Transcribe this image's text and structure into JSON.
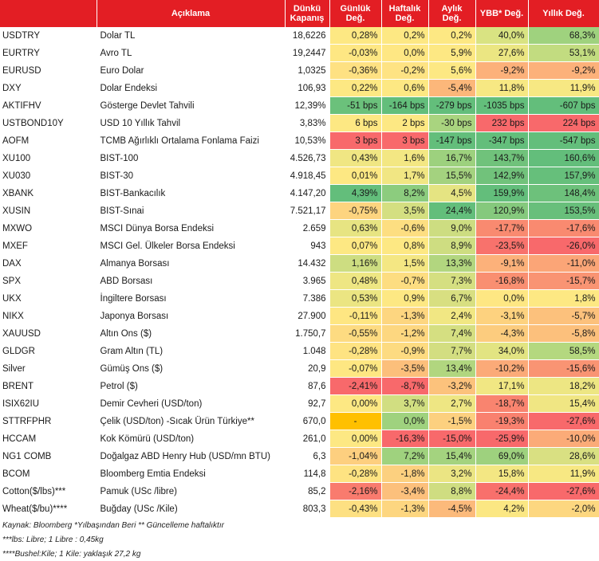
{
  "headers": {
    "code": "",
    "description": "Açıklama",
    "close": "Dünkü Kapanış",
    "daily": "Günlük Değ.",
    "weekly": "Haftalık Değ.",
    "monthly": "Aylık Değ.",
    "ytd": "YBB* Değ.",
    "yearly": "Yıllık Değ."
  },
  "colors": {
    "header_bg": "#e31e24",
    "header_text": "#ffffff"
  },
  "rows": [
    {
      "code": "USDTRY",
      "desc": "Dolar TL",
      "close": "18,6226",
      "cells": [
        {
          "t": "0,28%",
          "c": "#fde883"
        },
        {
          "t": "0,2%",
          "c": "#fde883"
        },
        {
          "t": "0,2%",
          "c": "#fde883"
        },
        {
          "t": "40,0%",
          "c": "#d9e382"
        },
        {
          "t": "68,3%",
          "c": "#9fd27e"
        }
      ]
    },
    {
      "code": "EURTRY",
      "desc": "Avro TL",
      "close": "19,2447",
      "cells": [
        {
          "t": "-0,03%",
          "c": "#fee783"
        },
        {
          "t": "0,0%",
          "c": "#fee783"
        },
        {
          "t": "5,9%",
          "c": "#fde883"
        },
        {
          "t": "27,6%",
          "c": "#ebe682"
        },
        {
          "t": "53,1%",
          "c": "#c2dc80"
        }
      ]
    },
    {
      "code": "EURUSD",
      "desc": "Euro Dolar",
      "close": "1,0325",
      "cells": [
        {
          "t": "-0,36%",
          "c": "#fee182"
        },
        {
          "t": "-0,2%",
          "c": "#fee383"
        },
        {
          "t": "5,6%",
          "c": "#fde883"
        },
        {
          "t": "-9,2%",
          "c": "#fcb17a"
        },
        {
          "t": "-9,2%",
          "c": "#fcb17a"
        }
      ]
    },
    {
      "code": "DXY",
      "desc": "Dolar Endeksi",
      "close": "106,93",
      "cells": [
        {
          "t": "0,22%",
          "c": "#fde883"
        },
        {
          "t": "0,6%",
          "c": "#fde883"
        },
        {
          "t": "-5,4%",
          "c": "#fcb77a"
        },
        {
          "t": "11,8%",
          "c": "#f7e883"
        },
        {
          "t": "11,9%",
          "c": "#f7e883"
        }
      ]
    },
    {
      "code": "AKTIFHV",
      "desc": "Gösterge Devlet Tahvili",
      "close": "12,39%",
      "cells": [
        {
          "t": "-51 bps",
          "c": "#6bc17b"
        },
        {
          "t": "-164 bps",
          "c": "#63be7b"
        },
        {
          "t": "-279 bps",
          "c": "#63be7b"
        },
        {
          "t": "-1035 bps",
          "c": "#63be7b"
        },
        {
          "t": "-607 bps",
          "c": "#63be7b"
        }
      ]
    },
    {
      "code": "USTBOND10Y",
      "desc": "USD 10 Yıllık Tahvil",
      "close": "3,83%",
      "cells": [
        {
          "t": "6 bps",
          "c": "#fde883"
        },
        {
          "t": "2 bps",
          "c": "#fde883"
        },
        {
          "t": "-30 bps",
          "c": "#a9d47f"
        },
        {
          "t": "232 bps",
          "c": "#f8696b"
        },
        {
          "t": "224 bps",
          "c": "#f8696b"
        }
      ]
    },
    {
      "code": "AOFM",
      "desc": "TCMB Ağırlıklı Ortalama Fonlama Faizi",
      "close": "10,53%",
      "cells": [
        {
          "t": "3 bps",
          "c": "#f8696b"
        },
        {
          "t": "3 bps",
          "c": "#f8696b"
        },
        {
          "t": "-147 bps",
          "c": "#63be7b"
        },
        {
          "t": "-347 bps",
          "c": "#63be7b"
        },
        {
          "t": "-547 bps",
          "c": "#63be7b"
        }
      ]
    },
    {
      "code": "XU100",
      "desc": "BIST-100",
      "close": "4.526,73",
      "cells": [
        {
          "t": "0,43%",
          "c": "#f0e683"
        },
        {
          "t": "1,6%",
          "c": "#f3e783"
        },
        {
          "t": "16,7%",
          "c": "#9dd17e"
        },
        {
          "t": "143,7%",
          "c": "#70c27b"
        },
        {
          "t": "160,6%",
          "c": "#63be7b"
        }
      ]
    },
    {
      "code": "XU030",
      "desc": "BIST-30",
      "close": "4.918,45",
      "cells": [
        {
          "t": "0,01%",
          "c": "#fde883"
        },
        {
          "t": "1,7%",
          "c": "#f1e683"
        },
        {
          "t": "15,5%",
          "c": "#a4d27f"
        },
        {
          "t": "142,9%",
          "c": "#71c27b"
        },
        {
          "t": "157,9%",
          "c": "#66bf7b"
        }
      ]
    },
    {
      "code": "XBANK",
      "desc": "BIST-Bankacılık",
      "close": "4.147,20",
      "cells": [
        {
          "t": "4,39%",
          "c": "#63be7b"
        },
        {
          "t": "8,2%",
          "c": "#8ccc7e"
        },
        {
          "t": "4,5%",
          "c": "#e5e482"
        },
        {
          "t": "159,9%",
          "c": "#63be7b"
        },
        {
          "t": "148,4%",
          "c": "#6dc17b"
        }
      ]
    },
    {
      "code": "XUSIN",
      "desc": "BIST-Sınai",
      "close": "7.521,17",
      "cells": [
        {
          "t": "-0,75%",
          "c": "#fdd47f"
        },
        {
          "t": "3,5%",
          "c": "#d4df81"
        },
        {
          "t": "24,4%",
          "c": "#63be7b"
        },
        {
          "t": "120,9%",
          "c": "#85c97d"
        },
        {
          "t": "153,5%",
          "c": "#68bf7b"
        }
      ]
    },
    {
      "code": "MXWO",
      "desc": "MSCI Dünya Borsa Endeksi",
      "close": "2.659",
      "cells": [
        {
          "t": "0,63%",
          "c": "#e7e482"
        },
        {
          "t": "-0,6%",
          "c": "#fdde81"
        },
        {
          "t": "9,0%",
          "c": "#cddd81"
        },
        {
          "t": "-17,7%",
          "c": "#f98a70"
        },
        {
          "t": "-17,6%",
          "c": "#f98a70"
        }
      ]
    },
    {
      "code": "MXEF",
      "desc": "MSCI Gel. Ülkeler Borsa Endeksi",
      "close": "943",
      "cells": [
        {
          "t": "0,07%",
          "c": "#fde883"
        },
        {
          "t": "0,8%",
          "c": "#fde883"
        },
        {
          "t": "8,9%",
          "c": "#cedd81"
        },
        {
          "t": "-23,5%",
          "c": "#f8726c"
        },
        {
          "t": "-26,0%",
          "c": "#f8696b"
        }
      ]
    },
    {
      "code": "DAX",
      "desc": "Almanya Borsası",
      "close": "14.432",
      "cells": [
        {
          "t": "1,16%",
          "c": "#cddd81"
        },
        {
          "t": "1,5%",
          "c": "#f4e783"
        },
        {
          "t": "13,3%",
          "c": "#b2d67f"
        },
        {
          "t": "-9,1%",
          "c": "#fcb17a"
        },
        {
          "t": "-11,0%",
          "c": "#fba577"
        }
      ]
    },
    {
      "code": "SPX",
      "desc": "ABD Borsası",
      "close": "3.965",
      "cells": [
        {
          "t": "0,48%",
          "c": "#eee683"
        },
        {
          "t": "-0,7%",
          "c": "#fddd81"
        },
        {
          "t": "7,3%",
          "c": "#d5df81"
        },
        {
          "t": "-16,8%",
          "c": "#f98f71"
        },
        {
          "t": "-15,7%",
          "c": "#f99473"
        }
      ]
    },
    {
      "code": "UKX",
      "desc": "İngiltere Borsası",
      "close": "7.386",
      "cells": [
        {
          "t": "0,53%",
          "c": "#ebe582"
        },
        {
          "t": "0,9%",
          "c": "#fde883"
        },
        {
          "t": "6,7%",
          "c": "#d8df81"
        },
        {
          "t": "0,0%",
          "c": "#fee783"
        },
        {
          "t": "1,8%",
          "c": "#fde883"
        }
      ]
    },
    {
      "code": "NIKX",
      "desc": "Japonya Borsası",
      "close": "27.900",
      "cells": [
        {
          "t": "-0,11%",
          "c": "#fee682"
        },
        {
          "t": "-1,3%",
          "c": "#fdd680"
        },
        {
          "t": "2,4%",
          "c": "#f1e783"
        },
        {
          "t": "-3,1%",
          "c": "#fdd27f"
        },
        {
          "t": "-5,7%",
          "c": "#fcc17c"
        }
      ]
    },
    {
      "code": "XAUUSD",
      "desc": "Altın Ons ($)",
      "close": "1.750,7",
      "cells": [
        {
          "t": "-0,55%",
          "c": "#fddb81"
        },
        {
          "t": "-1,2%",
          "c": "#fdd780"
        },
        {
          "t": "7,4%",
          "c": "#d5df81"
        },
        {
          "t": "-4,3%",
          "c": "#fccc7e"
        },
        {
          "t": "-5,8%",
          "c": "#fcc07c"
        }
      ]
    },
    {
      "code": "GLDGR",
      "desc": "Gram Altın (TL)",
      "close": "1.048",
      "cells": [
        {
          "t": "-0,28%",
          "c": "#fee382"
        },
        {
          "t": "-0,9%",
          "c": "#fddb81"
        },
        {
          "t": "7,7%",
          "c": "#d3de81"
        },
        {
          "t": "34,0%",
          "c": "#e2e482"
        },
        {
          "t": "58,5%",
          "c": "#b4d87f"
        }
      ]
    },
    {
      "code": "Silver",
      "desc": "Gümüş Ons ($)",
      "close": "20,9",
      "cells": [
        {
          "t": "-0,07%",
          "c": "#fee782"
        },
        {
          "t": "-3,5%",
          "c": "#fcbf7b"
        },
        {
          "t": "13,4%",
          "c": "#b1d67f"
        },
        {
          "t": "-10,2%",
          "c": "#fbaa78"
        },
        {
          "t": "-15,6%",
          "c": "#f99473"
        }
      ]
    },
    {
      "code": "BRENT",
      "desc": "Petrol ($)",
      "close": "87,6",
      "cells": [
        {
          "t": "-2,41%",
          "c": "#f8696b"
        },
        {
          "t": "-8,7%",
          "c": "#f8696b"
        },
        {
          "t": "-3,2%",
          "c": "#fcc27c"
        },
        {
          "t": "17,1%",
          "c": "#f1e783"
        },
        {
          "t": "18,2%",
          "c": "#ede683"
        }
      ]
    },
    {
      "code": "ISIX62IU",
      "desc": "Demir Cevheri (USD/ton)",
      "close": "92,7",
      "cells": [
        {
          "t": "0,00%",
          "c": "#fde883"
        },
        {
          "t": "3,7%",
          "c": "#d1de81"
        },
        {
          "t": "2,7%",
          "c": "#eee683"
        },
        {
          "t": "-18,7%",
          "c": "#f9846f"
        },
        {
          "t": "15,4%",
          "c": "#f0e683"
        }
      ]
    },
    {
      "code": "STTRFPHR",
      "desc": "Çelik (USD/ton) -Sıcak Ürün Türkiye**",
      "close": "670,0",
      "cells": [
        {
          "t": "-",
          "c": "#ffc000",
          "center": true
        },
        {
          "t": "0,0%",
          "c": "#9fd27e"
        },
        {
          "t": "-1,5%",
          "c": "#fcd07f"
        },
        {
          "t": "-19,3%",
          "c": "#f9816f"
        },
        {
          "t": "-27,6%",
          "c": "#f8696b"
        }
      ]
    },
    {
      "code": "HCCAM",
      "desc": "Kok Kömürü (USD/ton)",
      "close": "261,0",
      "cells": [
        {
          "t": "0,00%",
          "c": "#fde883"
        },
        {
          "t": "-16,3%",
          "c": "#f8696b"
        },
        {
          "t": "-15,0%",
          "c": "#f8696b"
        },
        {
          "t": "-25,9%",
          "c": "#f8696b"
        },
        {
          "t": "-10,0%",
          "c": "#fbab78"
        }
      ]
    },
    {
      "code": "NG1 COMB",
      "desc": "Doğalgaz ABD Henry Hub (USD/mn BTU)",
      "close": "6,3",
      "cells": [
        {
          "t": "-1,04%",
          "c": "#fdcf7f"
        },
        {
          "t": "7,2%",
          "c": "#9fd27e"
        },
        {
          "t": "15,4%",
          "c": "#a4d37f"
        },
        {
          "t": "69,0%",
          "c": "#9ed17e"
        },
        {
          "t": "28,6%",
          "c": "#d9e082"
        }
      ]
    },
    {
      "code": "BCOM",
      "desc": "Bloomberg Emtia Endeksi",
      "close": "114,8",
      "cells": [
        {
          "t": "-0,28%",
          "c": "#fee382"
        },
        {
          "t": "-1,8%",
          "c": "#fcd07f"
        },
        {
          "t": "3,2%",
          "c": "#ebe583"
        },
        {
          "t": "15,8%",
          "c": "#f3e783"
        },
        {
          "t": "11,9%",
          "c": "#f7e883"
        }
      ]
    },
    {
      "code": "Cotton($/lbs)***",
      "desc": "Pamuk (USc /libre)",
      "close": "85,2",
      "cells": [
        {
          "t": "-2,16%",
          "c": "#f97b6e"
        },
        {
          "t": "-3,4%",
          "c": "#fcc07c"
        },
        {
          "t": "8,8%",
          "c": "#cfdd81"
        },
        {
          "t": "-24,4%",
          "c": "#f8706c"
        },
        {
          "t": "-27,6%",
          "c": "#f8696b"
        }
      ]
    },
    {
      "code": "Wheat($/bu)****",
      "desc": "Buğday (USc /Kile)",
      "close": "803,3",
      "cells": [
        {
          "t": "-0,43%",
          "c": "#fde082"
        },
        {
          "t": "-1,3%",
          "c": "#fdd680"
        },
        {
          "t": "-4,5%",
          "c": "#fcba7b"
        },
        {
          "t": "4,2%",
          "c": "#fbe783"
        },
        {
          "t": "-2,0%",
          "c": "#fdd780"
        }
      ]
    }
  ],
  "notes": [
    "Kaynak: Bloomberg *Yılbaşından Beri  ** Güncelleme haftalıktır",
    "***lbs: Libre; 1 Libre : 0,45kg",
    "****Bushel:Kile; 1 Kile: yaklaşık 27,2 kg"
  ]
}
